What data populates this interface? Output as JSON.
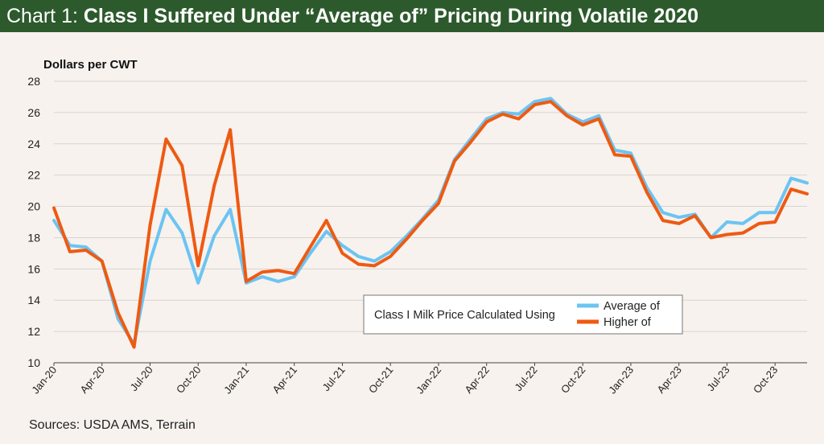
{
  "header": {
    "title_prefix": "Chart 1: ",
    "title_main": "Class I Suffered Under “Average of” Pricing During Volatile 2020"
  },
  "sources": "Sources: USDA AMS, Terrain",
  "colors": {
    "header_bg": "#2d5a2c",
    "average_line": "#6cc4f2",
    "higher_line": "#ee5a12",
    "background": "#f7f2ee"
  },
  "chart_data": {
    "type": "line",
    "title": "Class I Suffered Under “Average of” Pricing During Volatile 2020",
    "ylabel": "Dollars per CWT",
    "xlabel": "",
    "ylim": [
      10,
      28
    ],
    "yticks": [
      10,
      12,
      14,
      16,
      18,
      20,
      22,
      24,
      26,
      28
    ],
    "legend_title": "Class I Milk Price Calculated Using",
    "legend_position": "bottom-center",
    "x_tick_labels": [
      {
        "index": 0,
        "label": "Jan-20"
      },
      {
        "index": 3,
        "label": "Apr-20"
      },
      {
        "index": 6,
        "label": "Jul-20"
      },
      {
        "index": 9,
        "label": "Oct-20"
      },
      {
        "index": 12,
        "label": "Jan-21"
      },
      {
        "index": 15,
        "label": "Apr-21"
      },
      {
        "index": 18,
        "label": "Jul-21"
      },
      {
        "index": 21,
        "label": "Oct-21"
      },
      {
        "index": 24,
        "label": "Jan-22"
      },
      {
        "index": 27,
        "label": "Apr-22"
      },
      {
        "index": 30,
        "label": "Jul-22"
      },
      {
        "index": 33,
        "label": "Oct-22"
      },
      {
        "index": 36,
        "label": "Jan-23"
      },
      {
        "index": 39,
        "label": "Apr-23"
      },
      {
        "index": 42,
        "label": "Jul-23"
      },
      {
        "index": 45,
        "label": "Oct-23"
      }
    ],
    "n_points": 48,
    "series": [
      {
        "name": "Average of",
        "color": "#6cc4f2",
        "values": [
          19.1,
          17.5,
          17.4,
          16.5,
          12.8,
          11.2,
          16.5,
          19.8,
          18.3,
          15.1,
          18.1,
          19.8,
          15.1,
          15.5,
          15.2,
          15.5,
          17.0,
          18.4,
          17.5,
          16.8,
          16.5,
          17.1,
          18.1,
          19.2,
          20.4,
          23.0,
          24.3,
          25.6,
          26.0,
          25.9,
          26.7,
          26.9,
          25.9,
          25.4,
          25.8,
          23.6,
          23.4,
          21.2,
          19.6,
          19.3,
          19.5,
          18.0,
          19.0,
          18.9,
          19.6,
          19.6,
          21.8,
          21.5
        ]
      },
      {
        "name": "Higher of",
        "color": "#ee5a12",
        "values": [
          19.9,
          17.1,
          17.2,
          16.5,
          13.2,
          11.0,
          18.8,
          24.3,
          22.6,
          16.2,
          21.3,
          24.9,
          15.2,
          15.8,
          15.9,
          15.7,
          17.4,
          19.1,
          17.0,
          16.3,
          16.2,
          16.8,
          17.9,
          19.1,
          20.2,
          22.9,
          24.1,
          25.4,
          25.9,
          25.6,
          26.5,
          26.7,
          25.8,
          25.2,
          25.6,
          23.3,
          23.2,
          20.9,
          19.1,
          18.9,
          19.4,
          18.0,
          18.2,
          18.3,
          18.9,
          19.0,
          21.1,
          20.8
        ]
      }
    ]
  }
}
